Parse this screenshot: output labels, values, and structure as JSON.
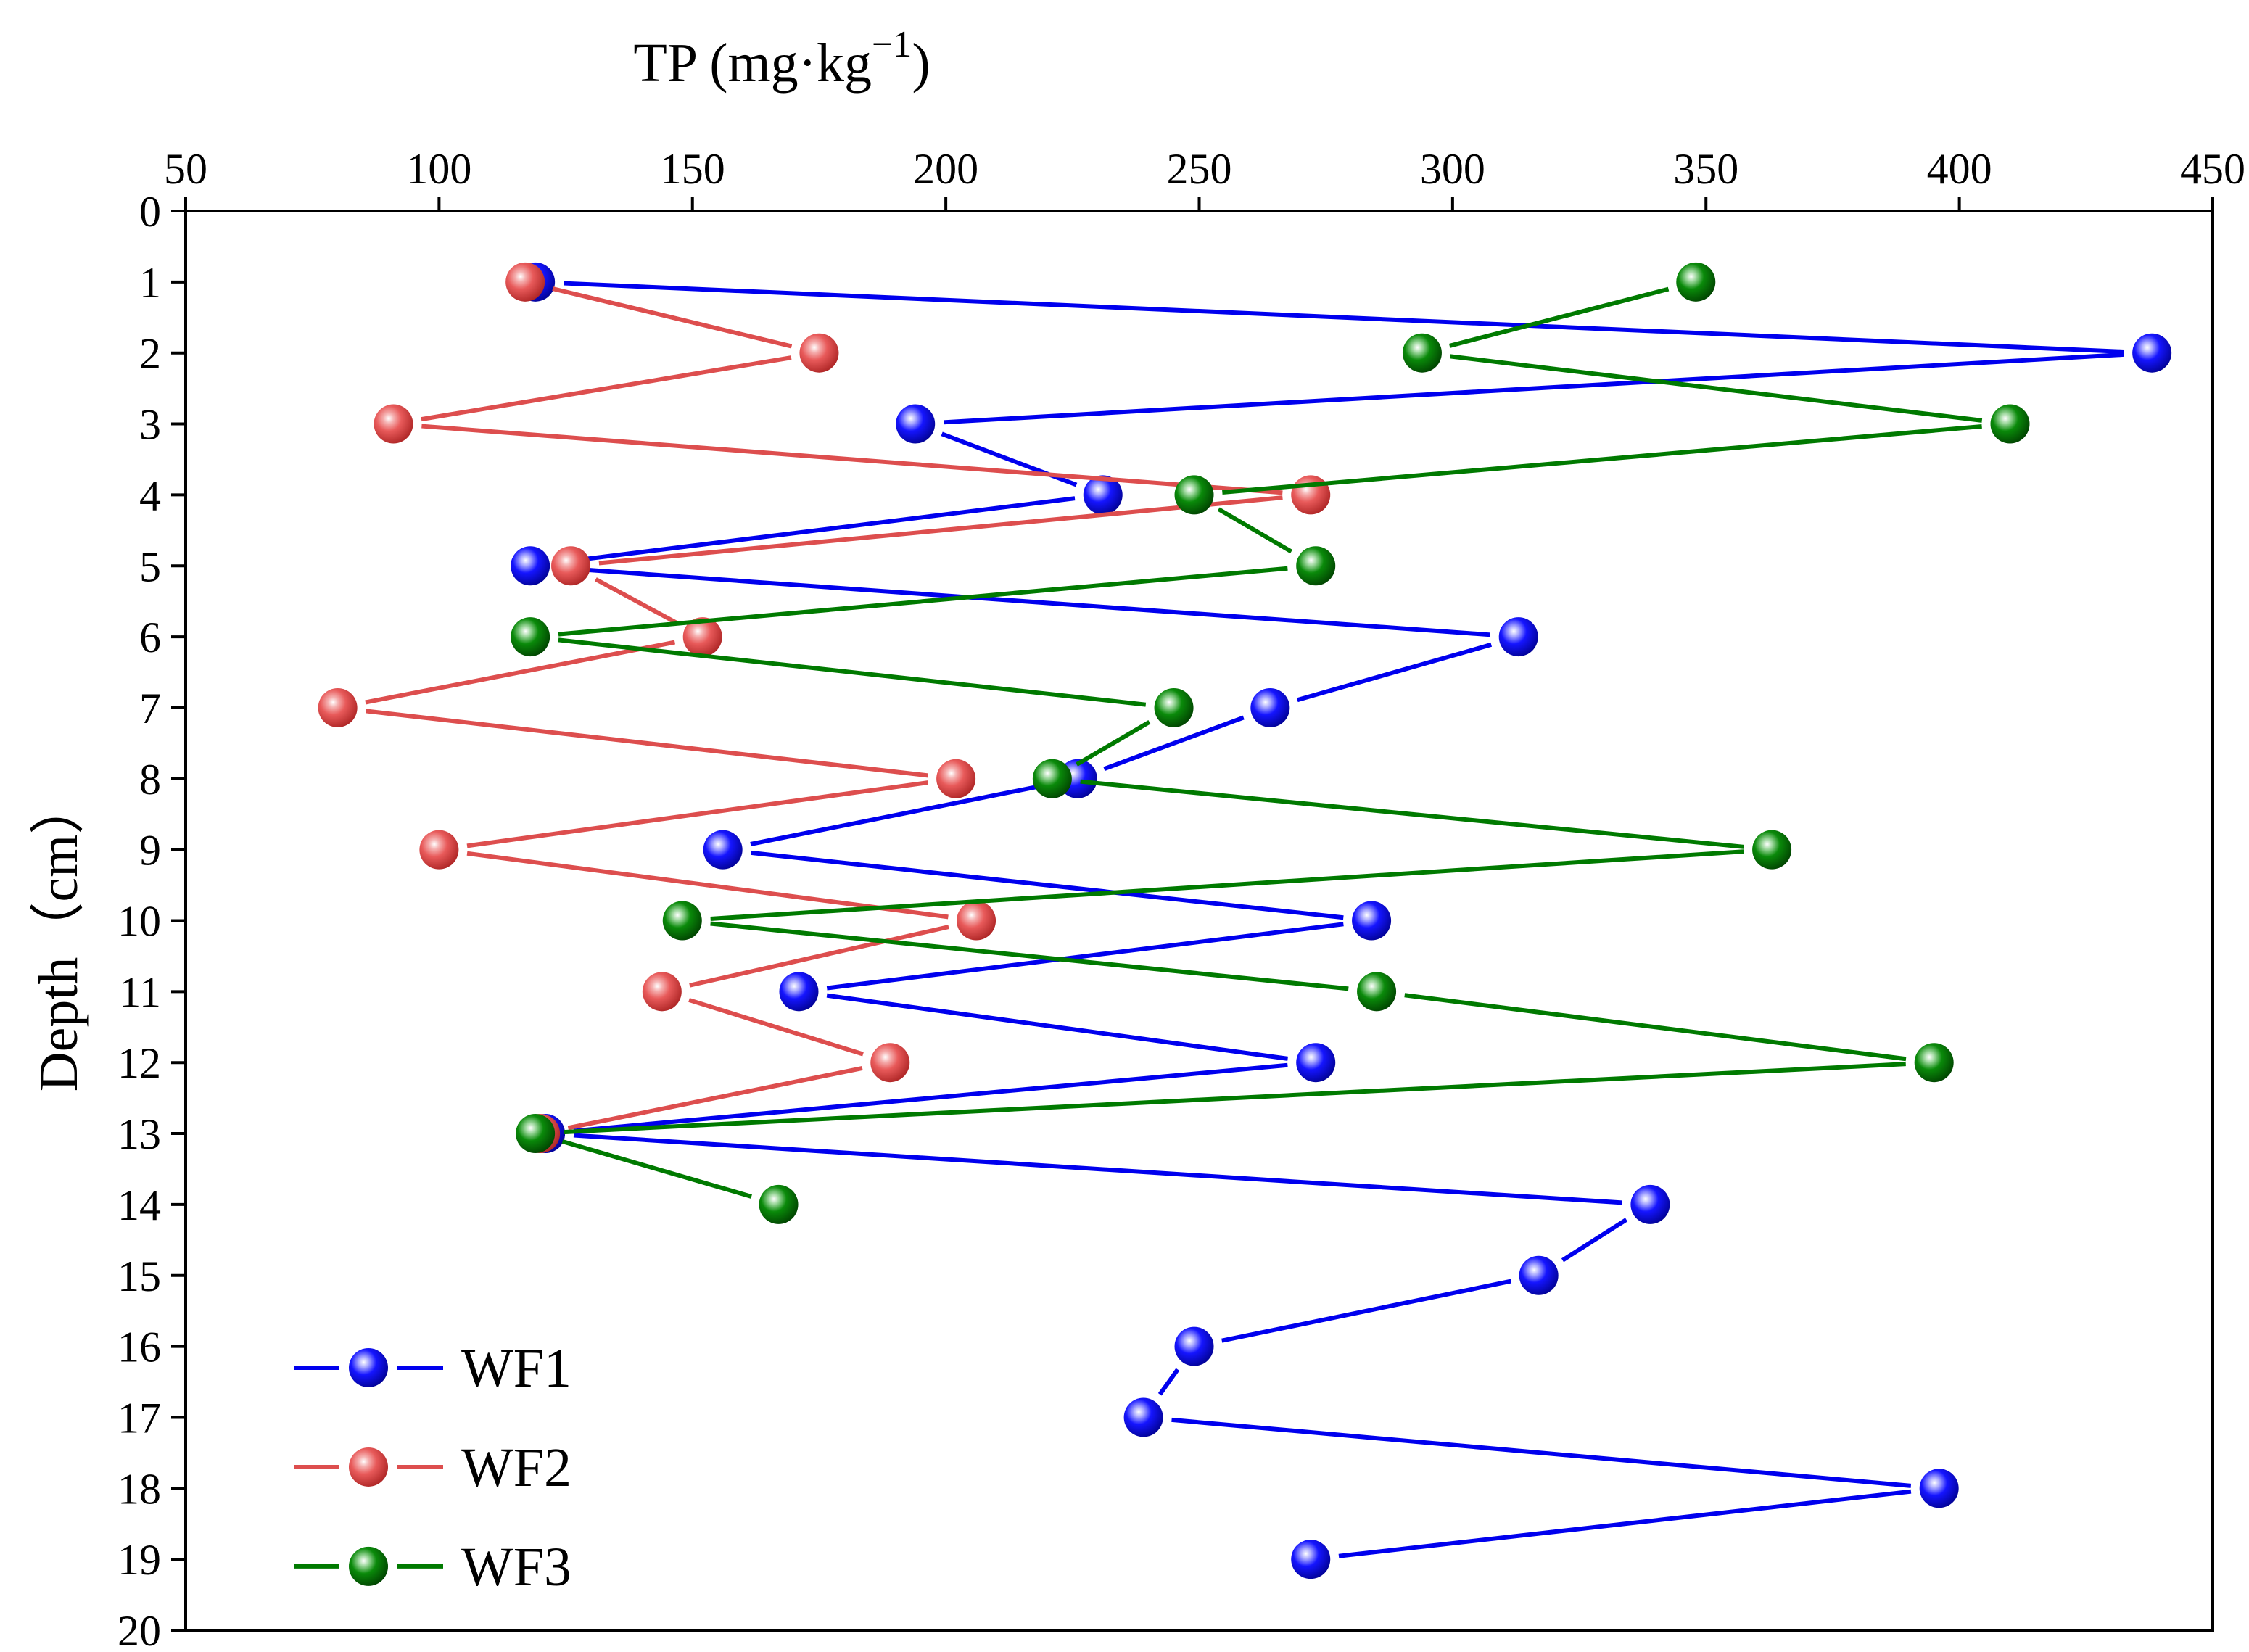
{
  "chart_data": {
    "type": "line",
    "orientation": "depth-profile",
    "title": "",
    "xlabel": "TP (mg·kg",
    "xlabel_sup": "−1",
    "xlabel_close": ")",
    "ylabel": "Depth（cm）",
    "xlim": [
      50,
      450
    ],
    "ylim": [
      0,
      20
    ],
    "x_ticks": [
      50,
      100,
      150,
      200,
      250,
      300,
      350,
      400,
      450
    ],
    "y_ticks": [
      0,
      1,
      2,
      3,
      4,
      5,
      6,
      7,
      8,
      9,
      10,
      11,
      12,
      13,
      14,
      15,
      16,
      17,
      18,
      19,
      20
    ],
    "legend_position": "bottom-left",
    "series": [
      {
        "name": "WF1",
        "color": "#0000ee",
        "marker_color": "#1515ff",
        "depth": [
          1,
          2,
          3,
          4,
          5,
          6,
          7,
          8,
          9,
          10,
          11,
          12,
          13,
          14,
          15,
          16,
          17,
          18,
          19
        ],
        "values": [
          119,
          438,
          194,
          231,
          118,
          313,
          264,
          226,
          156,
          284,
          171,
          273,
          121,
          339,
          317,
          249,
          239,
          396,
          272
        ]
      },
      {
        "name": "WF2",
        "color": "#dd4e4e",
        "marker_color": "#e85a5a",
        "depth": [
          1,
          2,
          3,
          4,
          5,
          6,
          7,
          8,
          9,
          10,
          11,
          12,
          13
        ],
        "values": [
          117,
          175,
          91,
          272,
          126,
          152,
          80,
          202,
          100,
          206,
          144,
          189,
          120
        ]
      },
      {
        "name": "WF3",
        "color": "#007a00",
        "marker_color": "#0a8a0a",
        "depth": [
          1,
          2,
          3,
          4,
          5,
          6,
          7,
          8,
          9,
          10,
          11,
          12,
          13,
          14
        ],
        "values": [
          348,
          294,
          410,
          249,
          273,
          118,
          245,
          221,
          363,
          148,
          285,
          395,
          119,
          167
        ]
      }
    ]
  }
}
